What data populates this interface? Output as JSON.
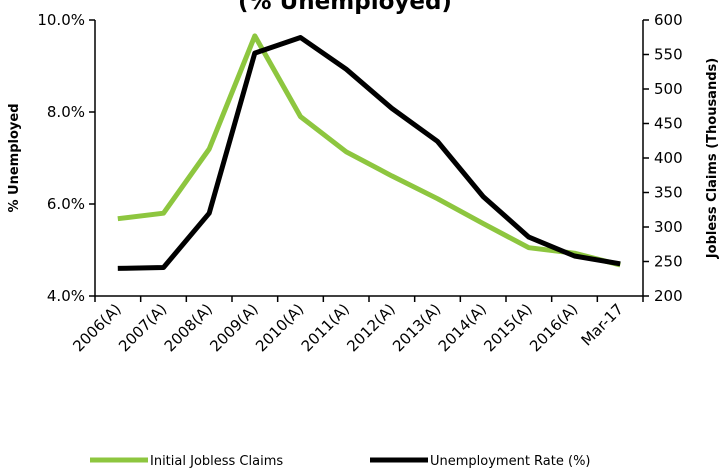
{
  "chart_data": {
    "type": "line",
    "title": "(% Unemployed)",
    "categories": [
      "2006(A)",
      "2007(A)",
      "2008(A)",
      "2009(A)",
      "2010(A)",
      "2011(A)",
      "2012(A)",
      "2013(A)",
      "2014(A)",
      "2015(A)",
      "2016(A)",
      "Mar-17"
    ],
    "ylabel_left": "% Unemployed",
    "ylabel_right": "Jobless Claims (Thousands)",
    "y_left": {
      "min": 4.0,
      "max": 10.0,
      "ticks": [
        "4.0%",
        "6.0%",
        "8.0%",
        "10.0%"
      ],
      "tick_values": [
        4,
        6,
        8,
        10
      ]
    },
    "y_right": {
      "min": 200,
      "max": 600,
      "ticks": [
        "200",
        "250",
        "300",
        "350",
        "400",
        "450",
        "500",
        "550",
        "600"
      ],
      "tick_values": [
        200,
        250,
        300,
        350,
        400,
        450,
        500,
        550,
        600
      ]
    },
    "grid": false,
    "legend_position": "bottom",
    "series": [
      {
        "name": "Initial Jobless Claims",
        "axis": "right",
        "color": "#8dc63f",
        "values": [
          312,
          320,
          413,
          577,
          460,
          409,
          374,
          341,
          305,
          270,
          262,
          245
        ]
      },
      {
        "name": "Unemployment Rate (%)",
        "axis": "left",
        "color": "#000000",
        "values": [
          4.6,
          4.62,
          5.8,
          9.28,
          9.62,
          8.93,
          8.08,
          7.36,
          6.16,
          5.28,
          4.87,
          4.7
        ]
      }
    ]
  }
}
